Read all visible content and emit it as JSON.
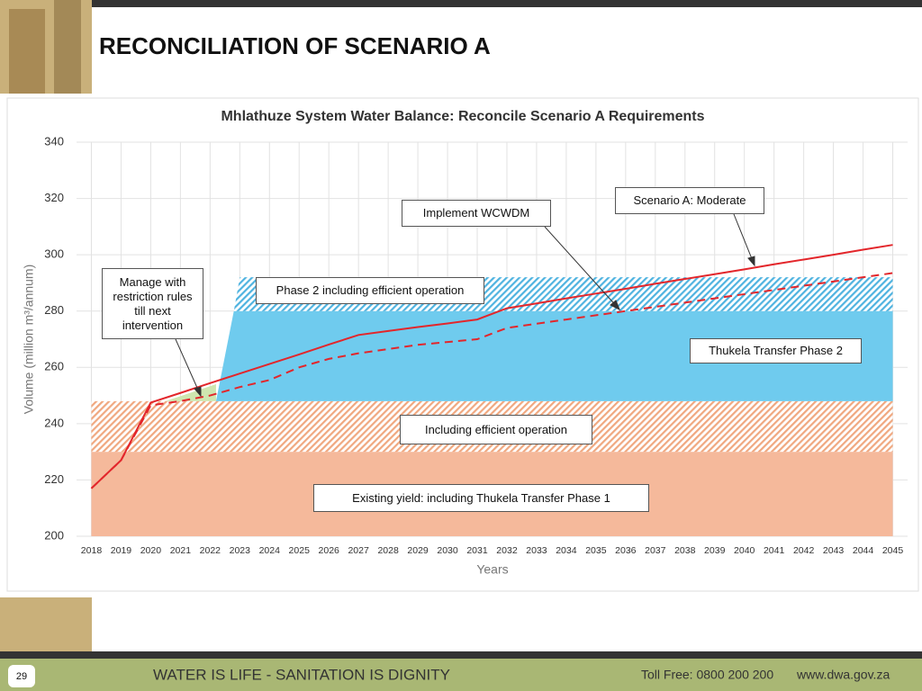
{
  "slide": {
    "title": "RECONCILIATION OF SCENARIO A",
    "page_number": "29",
    "motto": "WATER IS LIFE - SANITATION IS DIGNITY",
    "toll_free": "Toll Free: 0800 200 200",
    "website": "www.dwa.gov.za"
  },
  "chart_data": {
    "type": "line",
    "title": "Mhlathuze System Water Balance: Reconcile Scenario A Requirements",
    "x_label": "Years",
    "y_label": "Volume (million m³/annum)",
    "xlim": [
      2017.5,
      2045.5
    ],
    "xticks": [
      2018,
      2019,
      2020,
      2021,
      2022,
      2023,
      2024,
      2025,
      2026,
      2027,
      2028,
      2029,
      2030,
      2031,
      2032,
      2033,
      2034,
      2035,
      2036,
      2037,
      2038,
      2039,
      2040,
      2041,
      2042,
      2043,
      2044,
      2045
    ],
    "ylim": [
      200,
      340
    ],
    "yticks": [
      200,
      220,
      240,
      260,
      280,
      300,
      320,
      340
    ],
    "grid": true,
    "areas": [
      {
        "color": "#f5b99b",
        "hatch": false,
        "x": [
          2018,
          2045
        ],
        "lower": [
          200,
          200
        ],
        "upper": [
          230,
          230
        ]
      },
      {
        "color": "#f0a880",
        "hatch": true,
        "x": [
          2018,
          2045
        ],
        "lower": [
          230,
          230
        ],
        "upper": [
          248,
          248
        ]
      },
      {
        "color": "#6fcbee",
        "hatch": false,
        "x": [
          2022.2,
          2022.8,
          2045
        ],
        "lower": [
          248,
          248,
          248
        ],
        "upper": [
          248,
          280,
          280
        ]
      },
      {
        "color": "#4fb3e0",
        "hatch": true,
        "x": [
          2022.8,
          2023,
          2045
        ],
        "lower": [
          280,
          280,
          280
        ],
        "upper": [
          280,
          292,
          292
        ]
      },
      {
        "color": "#cfe6b0",
        "hatch": false,
        "x": [
          2020.5,
          2022.2
        ],
        "lower": [
          248,
          248
        ],
        "upper": [
          248,
          254
        ]
      }
    ],
    "x": [
      2018,
      2019,
      2020,
      2021,
      2022,
      2023,
      2024,
      2025,
      2026,
      2027,
      2028,
      2029,
      2030,
      2031,
      2032,
      2033,
      2034,
      2035,
      2036,
      2037,
      2038,
      2039,
      2040,
      2041,
      2042,
      2043,
      2044,
      2045
    ],
    "series": [
      {
        "color": "#e3262b",
        "dashed": false,
        "values": [
          217,
          227,
          247.5,
          250.9,
          254.4,
          257.8,
          261.2,
          264.6,
          268.1,
          271.5,
          272.9,
          274.3,
          275.6,
          277,
          281,
          282.7,
          284.5,
          286.2,
          287.9,
          289.7,
          291.4,
          293.1,
          294.8,
          296.6,
          298.3,
          300,
          301.8,
          303.5
        ]
      },
      {
        "color": "#e3262b",
        "dashed": true,
        "values": [
          217,
          227,
          246.5,
          248,
          250,
          253,
          255.5,
          260,
          263,
          265,
          266.5,
          268,
          269,
          270,
          274,
          275.5,
          277,
          278.5,
          280,
          281.5,
          283,
          284.5,
          286,
          287.5,
          289,
          290.5,
          292,
          293.5
        ]
      }
    ],
    "annotations": [
      "Implement WCWDM",
      "Scenario A: Moderate",
      "Manage with restriction rules till next intervention",
      "Phase 2 including efficient operation",
      "Thukela Transfer Phase 2",
      "Including efficient operation",
      "Existing yield: including Thukela Transfer Phase 1"
    ]
  }
}
